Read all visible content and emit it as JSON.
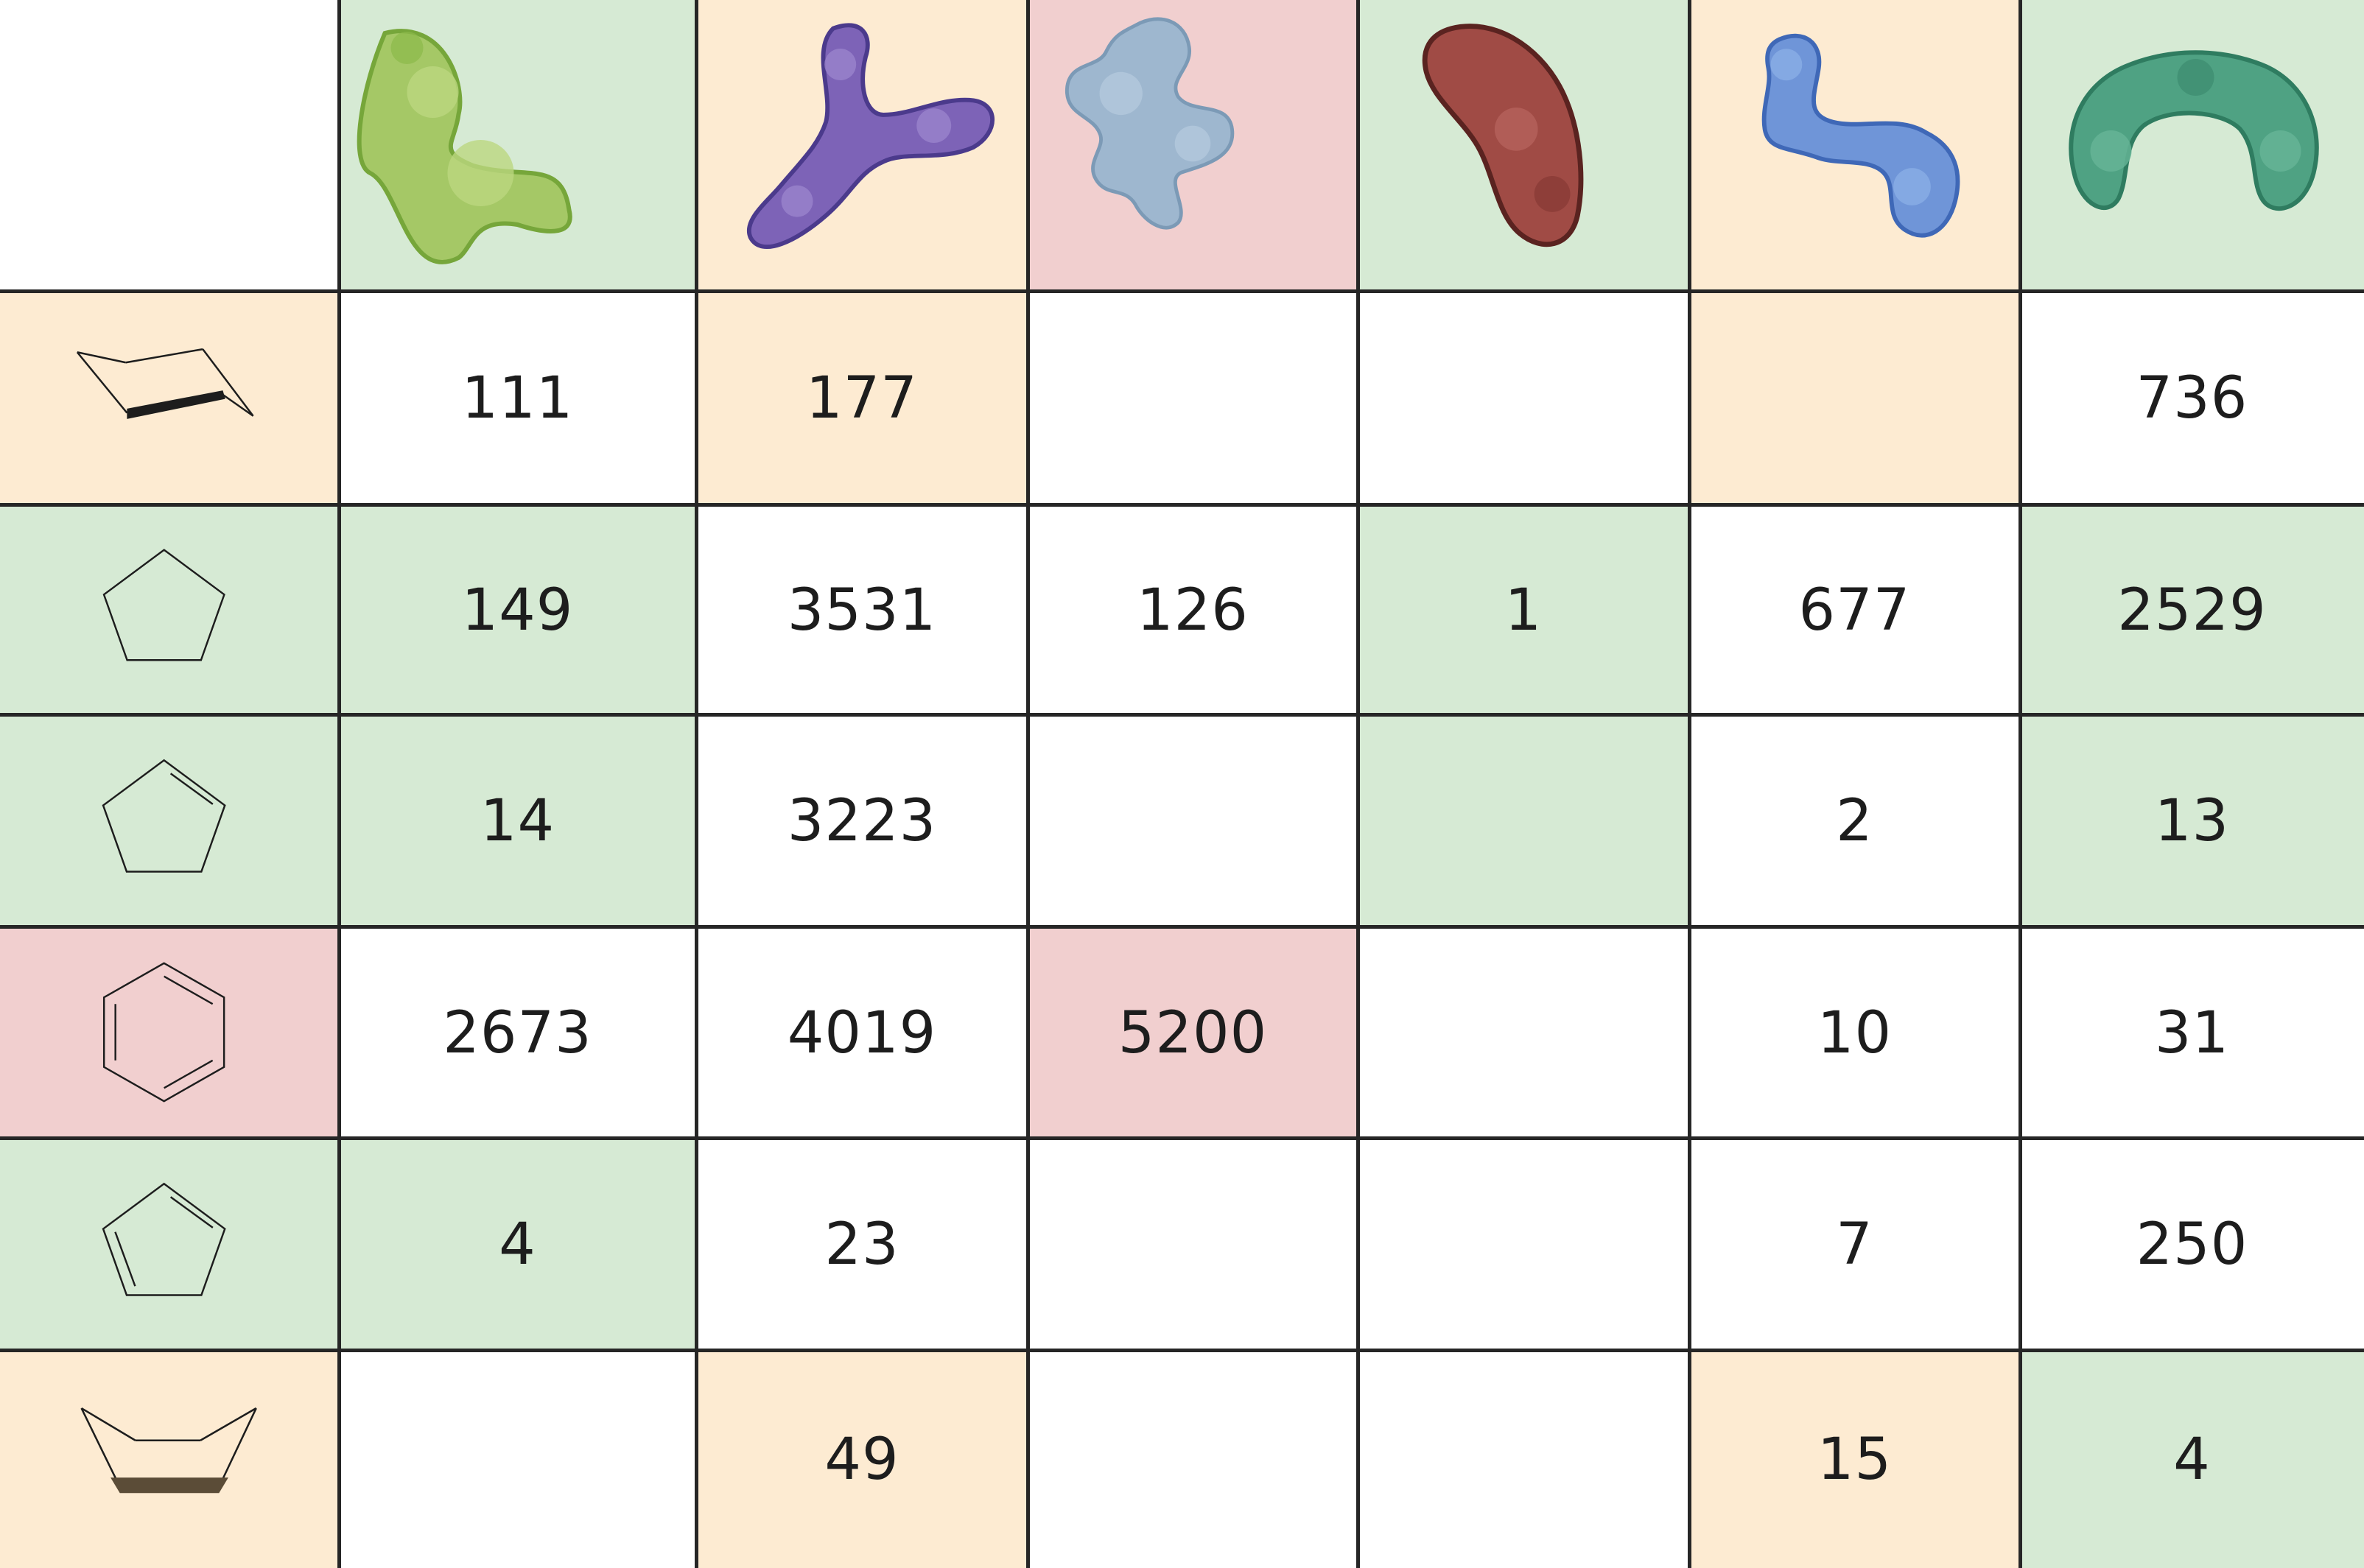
{
  "palette": {
    "green": "#d6ead4",
    "orange": "#fdebd2",
    "pink": "#f1cfcf",
    "white": "#ffffff",
    "line": "#262626"
  },
  "columns": [
    {
      "icon": "green-protein-icon",
      "bg": "green"
    },
    {
      "icon": "purple-antibody-icon",
      "bg": "orange"
    },
    {
      "icon": "blue-protein-icon",
      "bg": "pink"
    },
    {
      "icon": "red-protein-icon",
      "bg": "green"
    },
    {
      "icon": "blue-chain-protein-icon",
      "bg": "orange"
    },
    {
      "icon": "teal-protein-icon",
      "bg": "green"
    }
  ],
  "rows": [
    {
      "icon": "cyclohexane-chair-icon",
      "bg": "orange",
      "cells": [
        {
          "v": "111",
          "bg": "white"
        },
        {
          "v": "177",
          "bg": "orange"
        },
        {
          "v": "",
          "bg": "white"
        },
        {
          "v": "",
          "bg": "white"
        },
        {
          "v": "",
          "bg": "orange"
        },
        {
          "v": "736",
          "bg": "white"
        }
      ]
    },
    {
      "icon": "cyclopentane-icon",
      "bg": "green",
      "cells": [
        {
          "v": "149",
          "bg": "green"
        },
        {
          "v": "3531",
          "bg": "white"
        },
        {
          "v": "126",
          "bg": "white"
        },
        {
          "v": "1",
          "bg": "green"
        },
        {
          "v": "677",
          "bg": "white"
        },
        {
          "v": "2529",
          "bg": "green"
        }
      ]
    },
    {
      "icon": "cyclopentene-icon",
      "bg": "green",
      "cells": [
        {
          "v": "14",
          "bg": "green"
        },
        {
          "v": "3223",
          "bg": "white"
        },
        {
          "v": "",
          "bg": "white"
        },
        {
          "v": "",
          "bg": "green"
        },
        {
          "v": "2",
          "bg": "white"
        },
        {
          "v": "13",
          "bg": "green"
        }
      ]
    },
    {
      "icon": "benzene-icon",
      "bg": "pink",
      "cells": [
        {
          "v": "2673",
          "bg": "white"
        },
        {
          "v": "4019",
          "bg": "white"
        },
        {
          "v": "5200",
          "bg": "pink"
        },
        {
          "v": "",
          "bg": "white"
        },
        {
          "v": "10",
          "bg": "white"
        },
        {
          "v": "31",
          "bg": "white"
        }
      ]
    },
    {
      "icon": "cyclopentadiene-icon",
      "bg": "green",
      "cells": [
        {
          "v": "4",
          "bg": "green"
        },
        {
          "v": "23",
          "bg": "white"
        },
        {
          "v": "",
          "bg": "white"
        },
        {
          "v": "",
          "bg": "white"
        },
        {
          "v": "7",
          "bg": "white"
        },
        {
          "v": "250",
          "bg": "white"
        }
      ]
    },
    {
      "icon": "cyclohexane-boat-icon",
      "bg": "orange",
      "cells": [
        {
          "v": "",
          "bg": "white"
        },
        {
          "v": "49",
          "bg": "orange"
        },
        {
          "v": "",
          "bg": "white"
        },
        {
          "v": "",
          "bg": "white"
        },
        {
          "v": "15",
          "bg": "orange"
        },
        {
          "v": "4",
          "bg": "green"
        }
      ]
    }
  ]
}
